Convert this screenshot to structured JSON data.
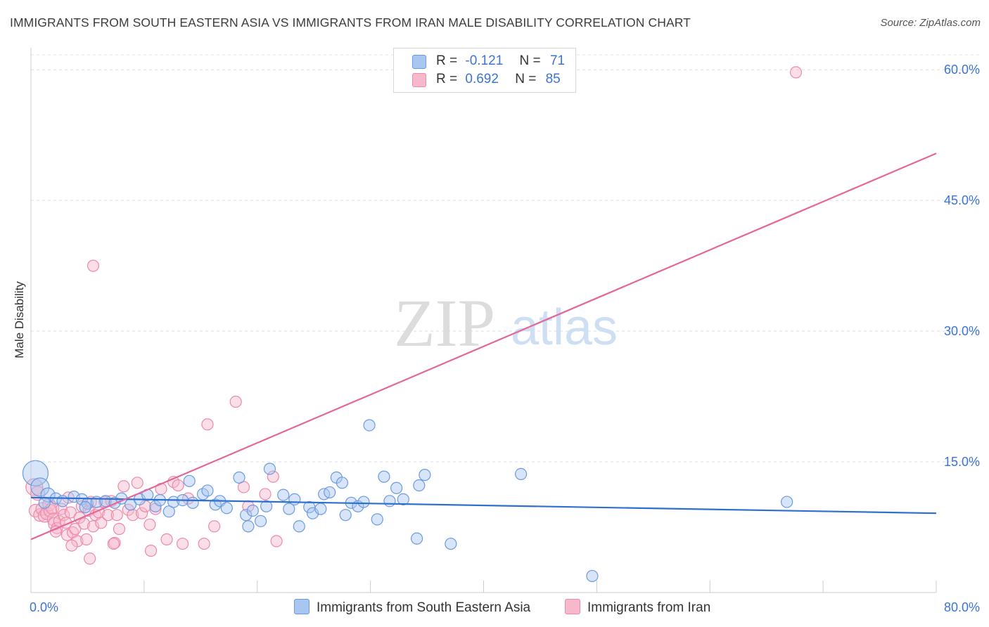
{
  "title": "IMMIGRANTS FROM SOUTH EASTERN ASIA VS IMMIGRANTS FROM IRAN MALE DISABILITY CORRELATION CHART",
  "source": "Source: ZipAtlas.com",
  "watermark": {
    "zip": "ZIP",
    "atlas": "atlas"
  },
  "legend": {
    "r_label": "R =",
    "n_label": "N =",
    "series1": {
      "r": "-0.121",
      "n": "71"
    },
    "series2": {
      "r": "0.692",
      "n": "85"
    }
  },
  "colors": {
    "blue_fill": "#a9c6f0",
    "blue_stroke": "#6a9be0",
    "blue_line": "#2f6fd0",
    "pink_fill": "#f7b8cc",
    "pink_stroke": "#ec8aa8",
    "pink_line": "#e4679a",
    "axis_text": "#3b73d6"
  },
  "chart_data": {
    "type": "scatter",
    "title": "IMMIGRANTS FROM SOUTH EASTERN ASIA VS IMMIGRANTS FROM IRAN MALE DISABILITY CORRELATION CHART",
    "xlabel": "",
    "ylabel": "Male Disability",
    "xlim": [
      0,
      80
    ],
    "ylim": [
      0,
      63
    ],
    "x_tick_labels": [
      {
        "value": 0,
        "label": "0.0%"
      },
      {
        "value": 80,
        "label": "80.0%"
      }
    ],
    "y_ticks": [
      {
        "value": 15,
        "label": "15.0%"
      },
      {
        "value": 30,
        "label": "30.0%"
      },
      {
        "value": 45,
        "label": "45.0%"
      },
      {
        "value": 60,
        "label": "60.0%"
      }
    ],
    "grid": true,
    "series": [
      {
        "name": "Immigrants from South Eastern Asia",
        "color": "#6a9be0",
        "trend": {
          "x": [
            0,
            80
          ],
          "y": [
            10.9,
            9.1
          ]
        },
        "points": [
          [
            0.4,
            13.7,
            18
          ],
          [
            0.8,
            12.1,
            13
          ],
          [
            1.5,
            11.2,
            10
          ],
          [
            2.2,
            10.8,
            8
          ],
          [
            1.2,
            10.3,
            8
          ],
          [
            2.8,
            10.5,
            8
          ],
          [
            3.8,
            11.0,
            8
          ],
          [
            4.5,
            10.7,
            8
          ],
          [
            5.0,
            10.2,
            8
          ],
          [
            4.8,
            9.8,
            8
          ],
          [
            5.8,
            10.4,
            8
          ],
          [
            6.6,
            10.5,
            8
          ],
          [
            7.4,
            10.3,
            8
          ],
          [
            8.0,
            10.8,
            8
          ],
          [
            8.8,
            10.1,
            8
          ],
          [
            9.6,
            10.7,
            8
          ],
          [
            10.3,
            11.2,
            8
          ],
          [
            11.0,
            9.9,
            8
          ],
          [
            11.4,
            10.6,
            8
          ],
          [
            12.2,
            9.3,
            8
          ],
          [
            12.6,
            10.4,
            8
          ],
          [
            13.4,
            10.6,
            8
          ],
          [
            14.0,
            12.8,
            8
          ],
          [
            14.3,
            10.3,
            8
          ],
          [
            15.2,
            11.3,
            8
          ],
          [
            15.6,
            11.7,
            8
          ],
          [
            16.3,
            10.1,
            8
          ],
          [
            16.7,
            10.5,
            8
          ],
          [
            17.3,
            9.7,
            8
          ],
          [
            18.4,
            13.2,
            8
          ],
          [
            19.0,
            8.9,
            8
          ],
          [
            19.2,
            7.6,
            8
          ],
          [
            19.6,
            9.4,
            8
          ],
          [
            20.3,
            8.2,
            8
          ],
          [
            20.8,
            9.9,
            8
          ],
          [
            21.1,
            14.2,
            8
          ],
          [
            22.3,
            11.2,
            8
          ],
          [
            22.8,
            9.6,
            8
          ],
          [
            23.3,
            10.7,
            8
          ],
          [
            23.7,
            7.6,
            8
          ],
          [
            24.6,
            9.8,
            8
          ],
          [
            24.9,
            9.1,
            8
          ],
          [
            25.6,
            9.6,
            8
          ],
          [
            25.9,
            11.3,
            8
          ],
          [
            26.4,
            11.5,
            8
          ],
          [
            27.0,
            13.2,
            8
          ],
          [
            27.5,
            12.6,
            8
          ],
          [
            27.8,
            8.9,
            8
          ],
          [
            28.3,
            10.3,
            8
          ],
          [
            28.9,
            9.9,
            8
          ],
          [
            29.4,
            10.4,
            8
          ],
          [
            29.9,
            19.2,
            8
          ],
          [
            30.6,
            8.4,
            8
          ],
          [
            31.2,
            13.3,
            8
          ],
          [
            31.7,
            10.5,
            8
          ],
          [
            32.3,
            12.0,
            8
          ],
          [
            32.9,
            10.7,
            8
          ],
          [
            34.3,
            12.3,
            8
          ],
          [
            34.8,
            13.5,
            8
          ],
          [
            34.1,
            6.2,
            8
          ],
          [
            37.1,
            5.6,
            8
          ],
          [
            43.3,
            13.6,
            8
          ],
          [
            49.6,
            1.9,
            8
          ],
          [
            66.8,
            10.4,
            8
          ]
        ]
      },
      {
        "name": "Immigrants from Iran",
        "color": "#ec8aa8",
        "trend": {
          "x": [
            0,
            80
          ],
          "y": [
            6.1,
            50.4
          ]
        },
        "points": [
          [
            0.3,
            12.1,
            12
          ],
          [
            0.6,
            11.4,
            10
          ],
          [
            0.4,
            9.4,
            9
          ],
          [
            0.8,
            8.9,
            9
          ],
          [
            1.0,
            9.6,
            9
          ],
          [
            1.2,
            8.8,
            9
          ],
          [
            1.4,
            9.1,
            9
          ],
          [
            1.6,
            10.1,
            9
          ],
          [
            1.7,
            9.4,
            9
          ],
          [
            1.9,
            9.7,
            9
          ],
          [
            2.0,
            8.4,
            9
          ],
          [
            2.1,
            7.9,
            9
          ],
          [
            2.3,
            7.4,
            8
          ],
          [
            2.2,
            7.0,
            8
          ],
          [
            2.5,
            8.2,
            8
          ],
          [
            2.7,
            9.6,
            8
          ],
          [
            2.9,
            8.9,
            8
          ],
          [
            3.1,
            8.0,
            8
          ],
          [
            3.3,
            10.9,
            8
          ],
          [
            3.5,
            9.2,
            8
          ],
          [
            3.2,
            6.6,
            8
          ],
          [
            3.7,
            6.9,
            8
          ],
          [
            3.9,
            7.3,
            8
          ],
          [
            4.1,
            5.9,
            8
          ],
          [
            4.3,
            8.6,
            8
          ],
          [
            4.5,
            9.9,
            8
          ],
          [
            4.7,
            7.9,
            8
          ],
          [
            4.9,
            6.1,
            8
          ],
          [
            5.1,
            9.4,
            8
          ],
          [
            5.3,
            10.4,
            8
          ],
          [
            5.5,
            7.6,
            8
          ],
          [
            5.7,
            8.9,
            8
          ],
          [
            5.2,
            3.9,
            8
          ],
          [
            3.6,
            5.4,
            8
          ],
          [
            6.0,
            9.2,
            8
          ],
          [
            6.2,
            8.0,
            8
          ],
          [
            6.5,
            10.4,
            8
          ],
          [
            6.8,
            8.9,
            8
          ],
          [
            7.1,
            10.5,
            8
          ],
          [
            7.4,
            5.7,
            8
          ],
          [
            7.6,
            8.9,
            8
          ],
          [
            7.3,
            5.6,
            8
          ],
          [
            7.8,
            7.3,
            8
          ],
          [
            8.2,
            12.2,
            8
          ],
          [
            8.6,
            9.5,
            8
          ],
          [
            9.0,
            8.9,
            8
          ],
          [
            9.4,
            12.6,
            8
          ],
          [
            9.8,
            9.1,
            8
          ],
          [
            10.1,
            9.9,
            8
          ],
          [
            10.5,
            7.8,
            8
          ],
          [
            10.6,
            4.8,
            8
          ],
          [
            11.0,
            9.6,
            8
          ],
          [
            11.5,
            11.9,
            8
          ],
          [
            12.0,
            6.1,
            8
          ],
          [
            12.6,
            12.7,
            8
          ],
          [
            13.0,
            12.3,
            8
          ],
          [
            13.4,
            5.6,
            8
          ],
          [
            13.9,
            10.8,
            8
          ],
          [
            15.3,
            5.6,
            8
          ],
          [
            15.6,
            19.3,
            8
          ],
          [
            16.2,
            7.6,
            8
          ],
          [
            18.1,
            21.9,
            8
          ],
          [
            18.8,
            12.1,
            8
          ],
          [
            19.2,
            9.9,
            8
          ],
          [
            20.7,
            11.3,
            8
          ],
          [
            21.4,
            13.3,
            8
          ],
          [
            21.7,
            5.9,
            8
          ],
          [
            5.5,
            37.5,
            8
          ],
          [
            67.6,
            59.7,
            8
          ]
        ]
      }
    ]
  },
  "bottom_legend": {
    "series1_label": "Immigrants from South Eastern Asia",
    "series2_label": "Immigrants from Iran"
  }
}
